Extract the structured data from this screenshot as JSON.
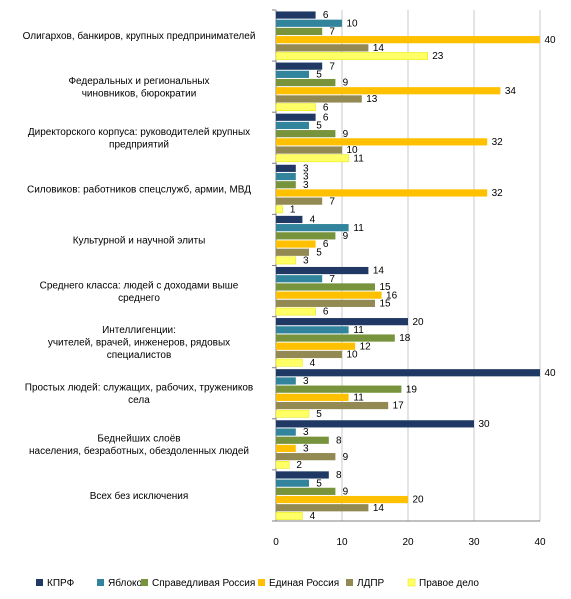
{
  "chart_data": {
    "type": "bar",
    "orientation": "horizontal",
    "xlim": [
      0,
      40
    ],
    "xticks": [
      "0",
      "10",
      "20",
      "30",
      "40"
    ],
    "grid": true,
    "legend_position": "bottom",
    "categories": [
      [
        "Олигархов, банкиров, крупных предпринимателей"
      ],
      [
        "Федеральных и региональных",
        "чиновников, бюрократии"
      ],
      [
        "Директорского корпуса: руководителей крупных",
        "предприятий"
      ],
      [
        "Силовиков: работников спецслужб, армии, МВД"
      ],
      [
        "Культурной и научной элиты"
      ],
      [
        "Среднего класса: людей с доходами выше",
        "среднего"
      ],
      [
        "Интеллигенции:",
        "учителей, врачей, инженеров, рядовых",
        "специалистов"
      ],
      [
        "Простых людей: служащих, рабочих, тружеников",
        "села"
      ],
      [
        "Беднейших слоёв",
        "населения, безработных, обездоленных людей"
      ],
      [
        "Всех без исключения"
      ]
    ],
    "series": [
      {
        "name": "КПРФ",
        "color": "#1f3864",
        "values": [
          6,
          7,
          6,
          3,
          4,
          14,
          20,
          40,
          30,
          8
        ]
      },
      {
        "name": "Яблоко",
        "color": "#31849b",
        "values": [
          10,
          5,
          5,
          3,
          11,
          7,
          11,
          3,
          3,
          5
        ]
      },
      {
        "name": "Справедливая Россия",
        "color": "#77933c",
        "values": [
          7,
          9,
          9,
          3,
          9,
          15,
          18,
          19,
          8,
          9
        ]
      },
      {
        "name": "Единая Россия",
        "color": "#ffc000",
        "values": [
          40,
          34,
          32,
          32,
          6,
          16,
          12,
          11,
          3,
          20
        ]
      },
      {
        "name": "ЛДПР",
        "color": "#938953",
        "values": [
          14,
          13,
          10,
          7,
          5,
          15,
          10,
          17,
          9,
          14
        ]
      },
      {
        "name": "Правое дело",
        "color": "#ffff66",
        "values": [
          23,
          6,
          11,
          1,
          3,
          6,
          4,
          5,
          2,
          4
        ]
      }
    ]
  }
}
